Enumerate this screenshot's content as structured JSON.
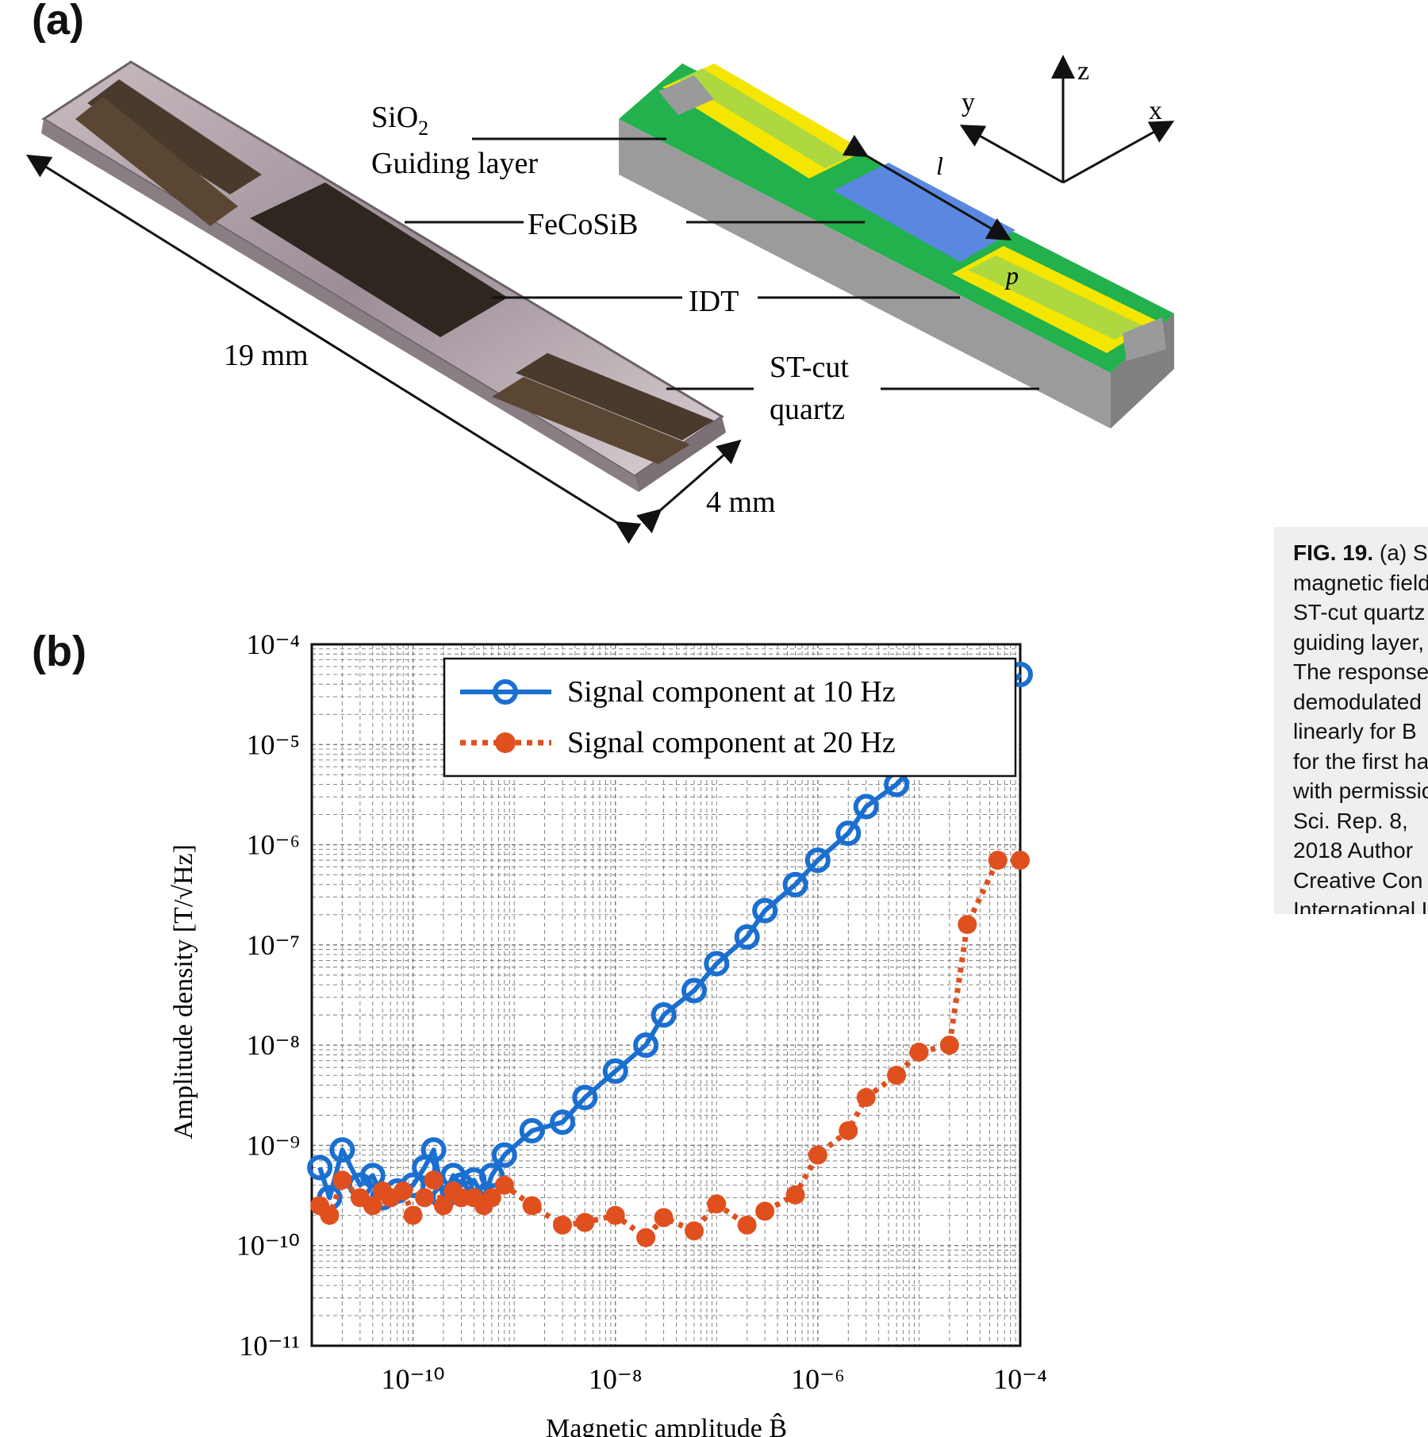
{
  "panel_a": {
    "label": "(a)",
    "labels": {
      "sio2": "SiO",
      "sio2_sub": "2",
      "guiding": "Guiding layer",
      "fecosib": "FeCoSiB",
      "idt": "IDT",
      "stcut": "ST-cut",
      "quartz": "quartz",
      "length": "19 mm",
      "width": "4 mm",
      "axis_x": "x",
      "axis_y": "y",
      "axis_z": "z",
      "l": "l",
      "p": "p"
    }
  },
  "panel_b": {
    "label": "(b)"
  },
  "chart_data": {
    "type": "scatter",
    "xscale": "log",
    "yscale": "log",
    "xlim": [
      1e-11,
      0.0001
    ],
    "ylim": [
      1e-11,
      0.0001
    ],
    "xlabel": "Magnetic amplitude B̂",
    "ylabel": "Amplitude density [T/√Hz]",
    "x_ticks": [
      "10⁻¹⁰",
      "10⁻⁸",
      "10⁻⁶",
      "10⁻⁴"
    ],
    "y_ticks": [
      "10⁻⁴",
      "10⁻⁵",
      "10⁻⁶",
      "10⁻⁷",
      "10⁻⁸",
      "10⁻⁹",
      "10⁻¹⁰",
      "10⁻¹¹"
    ],
    "grid": true,
    "legend_position": "top-left",
    "series": [
      {
        "name": "Signal component at 10 Hz",
        "color": "#1a6fd0",
        "line": "solid",
        "marker": "open-circle",
        "x": [
          1.2e-11,
          1.5e-11,
          2e-11,
          3e-11,
          4e-11,
          5e-11,
          7e-11,
          1e-10,
          1.3e-10,
          1.6e-10,
          2e-10,
          2.5e-10,
          3e-10,
          4e-10,
          5e-10,
          6e-10,
          8e-10,
          1.5e-09,
          3e-09,
          5e-09,
          1e-08,
          2e-08,
          3e-08,
          6e-08,
          1e-07,
          2e-07,
          3e-07,
          6e-07,
          1e-06,
          2e-06,
          3e-06,
          6e-06,
          1e-05,
          2e-05,
          3e-05,
          6e-05,
          0.0001
        ],
        "y": [
          6e-10,
          3e-10,
          9e-10,
          4e-10,
          5e-10,
          3e-10,
          3.5e-10,
          4e-10,
          6e-10,
          9e-10,
          3e-10,
          5e-10,
          4e-10,
          4.5e-10,
          3e-10,
          5e-10,
          8e-10,
          1.4e-09,
          1.7e-09,
          3e-09,
          5.5e-09,
          1e-08,
          2e-08,
          3.5e-08,
          6.5e-08,
          1.2e-07,
          2.2e-07,
          4e-07,
          7e-07,
          1.3e-06,
          2.4e-06,
          4e-06,
          7e-06,
          1.3e-05,
          2e-05,
          3e-05,
          5e-05
        ]
      },
      {
        "name": "Signal component at 20 Hz",
        "color": "#e0501e",
        "line": "dotted",
        "marker": "filled-circle",
        "x": [
          1.2e-11,
          1.5e-11,
          2e-11,
          3e-11,
          4e-11,
          5e-11,
          6e-11,
          8e-11,
          1e-10,
          1.3e-10,
          1.6e-10,
          2e-10,
          2.5e-10,
          3e-10,
          4e-10,
          5e-10,
          6e-10,
          8e-10,
          1.5e-09,
          3e-09,
          5e-09,
          1e-08,
          2e-08,
          3e-08,
          6e-08,
          1e-07,
          2e-07,
          3e-07,
          6e-07,
          1e-06,
          2e-06,
          3e-06,
          6e-06,
          1e-05,
          2e-05,
          3e-05,
          6e-05,
          0.0001
        ],
        "y": [
          2.5e-10,
          2e-10,
          4.5e-10,
          3e-10,
          2.5e-10,
          3.5e-10,
          3e-10,
          3.5e-10,
          2e-10,
          3e-10,
          4.5e-10,
          2.5e-10,
          3.5e-10,
          3e-10,
          3e-10,
          2.5e-10,
          3e-10,
          4e-10,
          2.5e-10,
          1.6e-10,
          1.7e-10,
          2e-10,
          1.2e-10,
          1.9e-10,
          1.4e-10,
          2.6e-10,
          1.6e-10,
          2.2e-10,
          3.2e-10,
          8e-10,
          1.4e-09,
          3e-09,
          5e-09,
          8.5e-09,
          1e-08,
          1.6e-07,
          7e-07,
          7e-07
        ]
      }
    ]
  },
  "caption": {
    "lines": [
      {
        "bold": "FIG. 19.",
        "text": " (a) SAW"
      },
      {
        "text": "magnetic field"
      },
      {
        "text": "ST-cut quartz"
      },
      {
        "text": "guiding layer,"
      },
      {
        "text": "The response"
      },
      {
        "text": "demodulated"
      },
      {
        "text": "linearly for B"
      },
      {
        "text": "for the first ha"
      },
      {
        "text": "with permissio"
      },
      {
        "text": "Sci. Rep. 8,"
      },
      {
        "text": "2018 Author"
      },
      {
        "text": "Creative Con"
      },
      {
        "text": "International L"
      }
    ]
  }
}
